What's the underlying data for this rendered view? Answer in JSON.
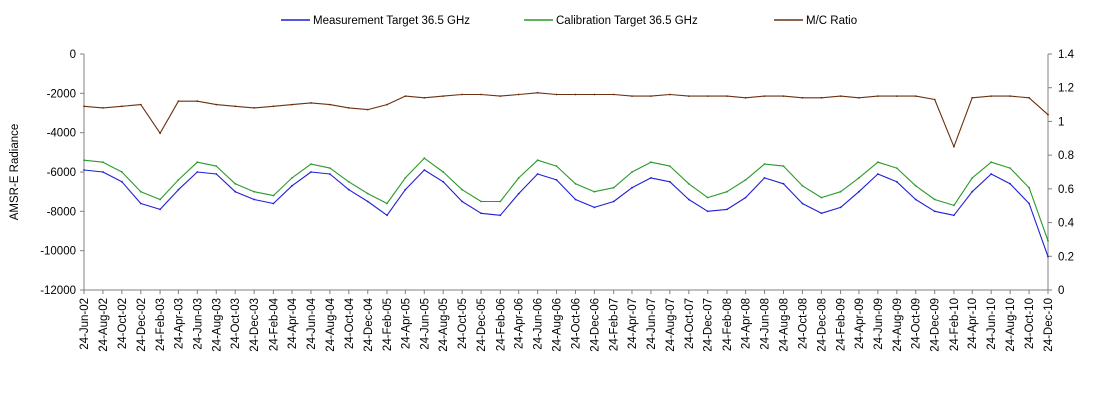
{
  "chart_data": {
    "type": "line",
    "ylabel": "AMSR-E Radiance",
    "y_left": {
      "min": -12000,
      "max": 0,
      "ticks": [
        0,
        -2000,
        -4000,
        -6000,
        -8000,
        -10000,
        -12000
      ],
      "labels": [
        "0",
        "-2000",
        "-4000",
        "-6000",
        "-8000",
        "-10000",
        "-12000"
      ]
    },
    "y_right": {
      "min": 0,
      "max": 1.4,
      "ticks": [
        1.4,
        1.2,
        1,
        0.8,
        0.6,
        0.4,
        0.2,
        0
      ],
      "labels": [
        "1.4",
        "1.2",
        "1",
        "0.8",
        "0.6",
        "0.4",
        "0.2",
        "0"
      ]
    },
    "x_start": "2002-06-24",
    "x_end": "2010-12-24",
    "categories": [
      "24-Jun-02",
      "24-Aug-02",
      "24-Oct-02",
      "24-Dec-02",
      "24-Feb-03",
      "24-Apr-03",
      "24-Jun-03",
      "24-Aug-03",
      "24-Oct-03",
      "24-Dec-03",
      "24-Feb-04",
      "24-Apr-04",
      "24-Jun-04",
      "24-Aug-04",
      "24-Oct-04",
      "24-Dec-04",
      "24-Feb-05",
      "24-Apr-05",
      "24-Jun-05",
      "24-Aug-05",
      "24-Oct-05",
      "24-Dec-05",
      "24-Feb-06",
      "24-Apr-06",
      "24-Jun-06",
      "24-Aug-06",
      "24-Oct-06",
      "24-Dec-06",
      "24-Feb-07",
      "24-Apr-07",
      "24-Jun-07",
      "24-Aug-07",
      "24-Oct-07",
      "24-Dec-07",
      "24-Feb-08",
      "24-Apr-08",
      "24-Jun-08",
      "24-Aug-08",
      "24-Oct-08",
      "24-Dec-08",
      "24-Feb-09",
      "24-Apr-09",
      "24-Jun-09",
      "24-Aug-09",
      "24-Oct-09",
      "24-Dec-09",
      "24-Feb-10",
      "24-Apr-10",
      "24-Jun-10",
      "24-Aug-10",
      "24-Oct-10",
      "24-Dec-10"
    ],
    "series": [
      {
        "name": "Measurement Target 36.5 GHz",
        "color": "#1f1fd6",
        "axis": "left",
        "x": [
          "2002-06-24",
          "2002-08-24",
          "2002-10-24",
          "2002-12-24",
          "2003-02-24",
          "2003-04-24",
          "2003-06-24",
          "2003-08-24",
          "2003-10-24",
          "2003-12-24",
          "2004-02-24",
          "2004-04-24",
          "2004-06-24",
          "2004-08-24",
          "2004-10-24",
          "2004-12-24",
          "2005-02-24",
          "2005-04-24",
          "2005-06-24",
          "2005-08-24",
          "2005-10-24",
          "2005-12-24",
          "2006-02-24",
          "2006-04-24",
          "2006-06-24",
          "2006-08-24",
          "2006-10-24",
          "2006-12-24",
          "2007-02-24",
          "2007-04-24",
          "2007-06-24",
          "2007-08-24",
          "2007-10-24",
          "2007-12-24",
          "2008-02-24",
          "2008-04-24",
          "2008-06-24",
          "2008-08-24",
          "2008-10-24",
          "2008-12-24",
          "2009-02-24",
          "2009-04-24",
          "2009-06-24",
          "2009-08-24",
          "2009-10-24",
          "2009-12-24",
          "2010-02-24",
          "2010-04-24",
          "2010-06-24",
          "2010-08-24",
          "2010-10-24",
          "2010-12-24"
        ],
        "values": [
          -5900,
          -6000,
          -6500,
          -7600,
          -7900,
          -6900,
          -6000,
          -6100,
          -7000,
          -7400,
          -7600,
          -6700,
          -6000,
          -6100,
          -6900,
          -7500,
          -8200,
          -6900,
          -5900,
          -6500,
          -7500,
          -8100,
          -8200,
          -7100,
          -6100,
          -6400,
          -7400,
          -7800,
          -7500,
          -6800,
          -6300,
          -6500,
          -7400,
          -8000,
          -7900,
          -7300,
          -6300,
          -6600,
          -7600,
          -8100,
          -7800,
          -7000,
          -6100,
          -6500,
          -7400,
          -8000,
          -8200,
          -7000,
          -6100,
          -6600,
          -7600,
          -10300
        ]
      },
      {
        "name": "Calibration Target 36.5 GHz",
        "color": "#2a9a2a",
        "axis": "left",
        "x": [
          "2002-06-24",
          "2002-08-24",
          "2002-10-24",
          "2002-12-24",
          "2003-02-24",
          "2003-04-24",
          "2003-06-24",
          "2003-08-24",
          "2003-10-24",
          "2003-12-24",
          "2004-02-24",
          "2004-04-24",
          "2004-06-24",
          "2004-08-24",
          "2004-10-24",
          "2004-12-24",
          "2005-02-24",
          "2005-04-24",
          "2005-06-24",
          "2005-08-24",
          "2005-10-24",
          "2005-12-24",
          "2006-02-24",
          "2006-04-24",
          "2006-06-24",
          "2006-08-24",
          "2006-10-24",
          "2006-12-24",
          "2007-02-24",
          "2007-04-24",
          "2007-06-24",
          "2007-08-24",
          "2007-10-24",
          "2007-12-24",
          "2008-02-24",
          "2008-04-24",
          "2008-06-24",
          "2008-08-24",
          "2008-10-24",
          "2008-12-24",
          "2009-02-24",
          "2009-04-24",
          "2009-06-24",
          "2009-08-24",
          "2009-10-24",
          "2009-12-24",
          "2010-02-24",
          "2010-04-24",
          "2010-06-24",
          "2010-08-24",
          "2010-10-24",
          "2010-12-24"
        ],
        "values": [
          -5400,
          -5500,
          -6000,
          -7000,
          -7400,
          -6400,
          -5500,
          -5700,
          -6600,
          -7000,
          -7200,
          -6300,
          -5600,
          -5800,
          -6500,
          -7100,
          -7600,
          -6300,
          -5300,
          -6000,
          -6900,
          -7500,
          -7500,
          -6300,
          -5400,
          -5700,
          -6600,
          -7000,
          -6800,
          -6000,
          -5500,
          -5700,
          -6600,
          -7300,
          -7000,
          -6400,
          -5600,
          -5700,
          -6700,
          -7300,
          -7000,
          -6300,
          -5500,
          -5800,
          -6700,
          -7400,
          -7700,
          -6300,
          -5500,
          -5800,
          -6800,
          -9500
        ]
      },
      {
        "name": "M/C Ratio",
        "color": "#6b3010",
        "axis": "right",
        "x": [
          "2002-06-24",
          "2002-08-24",
          "2002-10-24",
          "2002-12-24",
          "2003-02-24",
          "2003-04-24",
          "2003-06-24",
          "2003-08-24",
          "2003-10-24",
          "2003-12-24",
          "2004-02-24",
          "2004-04-24",
          "2004-06-24",
          "2004-08-24",
          "2004-10-24",
          "2004-12-24",
          "2005-02-24",
          "2005-04-24",
          "2005-06-24",
          "2005-08-24",
          "2005-10-24",
          "2005-12-24",
          "2006-02-24",
          "2006-04-24",
          "2006-06-24",
          "2006-08-24",
          "2006-10-24",
          "2006-12-24",
          "2007-02-24",
          "2007-04-24",
          "2007-06-24",
          "2007-08-24",
          "2007-10-24",
          "2007-12-24",
          "2008-02-24",
          "2008-04-24",
          "2008-06-24",
          "2008-08-24",
          "2008-10-24",
          "2008-12-24",
          "2009-02-24",
          "2009-04-24",
          "2009-06-24",
          "2009-08-24",
          "2009-10-24",
          "2009-12-24",
          "2010-02-24",
          "2010-04-24",
          "2010-06-24",
          "2010-08-24",
          "2010-10-24",
          "2010-12-24"
        ],
        "values": [
          1.09,
          1.08,
          1.09,
          1.1,
          0.93,
          1.12,
          1.12,
          1.1,
          1.09,
          1.08,
          1.09,
          1.1,
          1.11,
          1.1,
          1.08,
          1.07,
          1.1,
          1.15,
          1.14,
          1.15,
          1.16,
          1.16,
          1.15,
          1.16,
          1.17,
          1.16,
          1.16,
          1.16,
          1.16,
          1.15,
          1.15,
          1.16,
          1.15,
          1.15,
          1.15,
          1.14,
          1.15,
          1.15,
          1.14,
          1.14,
          1.15,
          1.14,
          1.15,
          1.15,
          1.15,
          1.13,
          0.85,
          1.14,
          1.15,
          1.15,
          1.14,
          1.04
        ]
      }
    ],
    "grid": false,
    "legend_position": "top"
  }
}
